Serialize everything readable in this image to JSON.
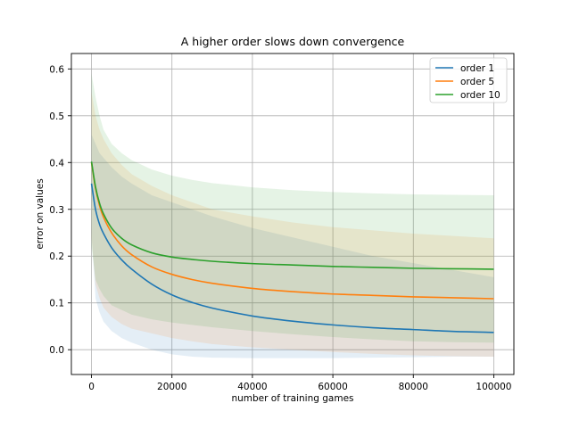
{
  "chart_data": {
    "type": "line",
    "title": "A higher order slows down convergence",
    "xlabel": "number of training games",
    "ylabel": "error on values",
    "xlim": [
      -5000,
      105000
    ],
    "ylim": [
      -0.053,
      0.633
    ],
    "xticks": [
      0,
      20000,
      40000,
      60000,
      80000,
      100000
    ],
    "xtick_labels": [
      "0",
      "20000",
      "40000",
      "60000",
      "80000",
      "100000"
    ],
    "yticks": [
      0.0,
      0.1,
      0.2,
      0.3,
      0.4,
      0.5,
      0.6
    ],
    "ytick_labels": [
      "0.0",
      "0.1",
      "0.2",
      "0.3",
      "0.4",
      "0.5",
      "0.6"
    ],
    "grid": true,
    "legend_position": "top-right",
    "series": [
      {
        "name": "order 1",
        "color": "#1f77b4",
        "x": [
          0,
          1000,
          2000,
          3000,
          5000,
          7500,
          10000,
          15000,
          20000,
          25000,
          30000,
          40000,
          50000,
          60000,
          70000,
          80000,
          90000,
          100000
        ],
        "y": [
          0.355,
          0.3,
          0.268,
          0.248,
          0.218,
          0.192,
          0.172,
          0.14,
          0.117,
          0.101,
          0.089,
          0.072,
          0.061,
          0.053,
          0.047,
          0.043,
          0.039,
          0.037
        ],
        "upper": [
          0.46,
          0.44,
          0.42,
          0.41,
          0.39,
          0.37,
          0.355,
          0.33,
          0.315,
          0.3,
          0.285,
          0.26,
          0.24,
          0.22,
          0.2,
          0.185,
          0.17,
          0.155
        ],
        "lower": [
          0.25,
          0.11,
          0.08,
          0.06,
          0.04,
          0.025,
          0.015,
          0.0,
          -0.01,
          -0.015,
          -0.017,
          -0.018,
          -0.018,
          -0.018,
          -0.017,
          -0.016,
          -0.015,
          -0.015
        ]
      },
      {
        "name": "order 5",
        "color": "#ff7f0e",
        "x": [
          0,
          1000,
          2000,
          3000,
          5000,
          7500,
          10000,
          15000,
          20000,
          25000,
          30000,
          40000,
          50000,
          60000,
          70000,
          80000,
          90000,
          100000
        ],
        "y": [
          0.4,
          0.345,
          0.308,
          0.283,
          0.25,
          0.222,
          0.203,
          0.177,
          0.161,
          0.15,
          0.142,
          0.131,
          0.124,
          0.119,
          0.116,
          0.113,
          0.111,
          0.109
        ],
        "upper": [
          0.55,
          0.5,
          0.47,
          0.45,
          0.42,
          0.395,
          0.375,
          0.35,
          0.33,
          0.315,
          0.3,
          0.285,
          0.272,
          0.262,
          0.255,
          0.248,
          0.243,
          0.238
        ],
        "lower": [
          0.24,
          0.14,
          0.11,
          0.09,
          0.07,
          0.055,
          0.045,
          0.035,
          0.025,
          0.018,
          0.012,
          0.005,
          0.0,
          -0.005,
          -0.009,
          -0.012,
          -0.014,
          -0.015
        ]
      },
      {
        "name": "order 10",
        "color": "#2ca02c",
        "x": [
          0,
          1000,
          2000,
          3000,
          5000,
          7500,
          10000,
          15000,
          20000,
          25000,
          30000,
          40000,
          50000,
          60000,
          70000,
          80000,
          90000,
          100000
        ],
        "y": [
          0.402,
          0.348,
          0.313,
          0.29,
          0.26,
          0.238,
          0.224,
          0.207,
          0.198,
          0.193,
          0.189,
          0.184,
          0.181,
          0.178,
          0.176,
          0.174,
          0.173,
          0.172
        ],
        "upper": [
          0.59,
          0.54,
          0.5,
          0.47,
          0.44,
          0.42,
          0.405,
          0.385,
          0.372,
          0.363,
          0.356,
          0.347,
          0.341,
          0.337,
          0.334,
          0.332,
          0.331,
          0.33
        ],
        "lower": [
          0.22,
          0.15,
          0.13,
          0.115,
          0.095,
          0.085,
          0.075,
          0.065,
          0.058,
          0.053,
          0.048,
          0.04,
          0.033,
          0.027,
          0.022,
          0.018,
          0.016,
          0.015
        ]
      }
    ]
  }
}
